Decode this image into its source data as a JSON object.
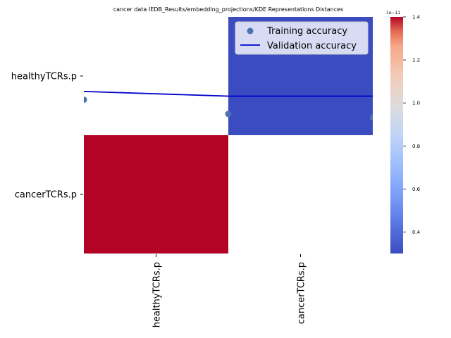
{
  "chart_data": {
    "type": "heatmap",
    "title": "cancer data IEDB_Results/embedding_projections/KDE Representations Distances",
    "rows": [
      "healthyTCRs.p",
      "cancerTCRs.p"
    ],
    "columns": [
      "healthyTCRs.p",
      "cancerTCRs.p"
    ],
    "values": [
      [
        null,
        3e-12
      ],
      [
        1.4e-11,
        null
      ]
    ],
    "colormap": "coolwarm",
    "colorbar": {
      "exponent_label": "1e−11",
      "ticks": [
        "0.4",
        "0.6",
        "0.8",
        "1.0",
        "1.2",
        "1.4"
      ],
      "tick_values": [
        0.4,
        0.6,
        0.8,
        1.0,
        1.2,
        1.4
      ],
      "range": [
        0.3,
        1.4
      ]
    },
    "overlay": {
      "x": [
        0,
        1,
        2
      ],
      "training_accuracy": [
        0.2,
        0.32,
        0.35
      ],
      "validation_accuracy": [
        0.13,
        0.17,
        0.17
      ],
      "y_range_top_to_bottom": [
        -0.5,
        1.5
      ]
    },
    "legend": {
      "placement": "upper-right",
      "entries": [
        {
          "label": "Training accuracy",
          "marker": "circle",
          "color": "#4c72b0"
        },
        {
          "label": "Validation accuracy",
          "marker": "line",
          "color": "#0000cc"
        }
      ]
    },
    "colors": {
      "high": "#b40426",
      "low": "#3b4cc0"
    }
  }
}
